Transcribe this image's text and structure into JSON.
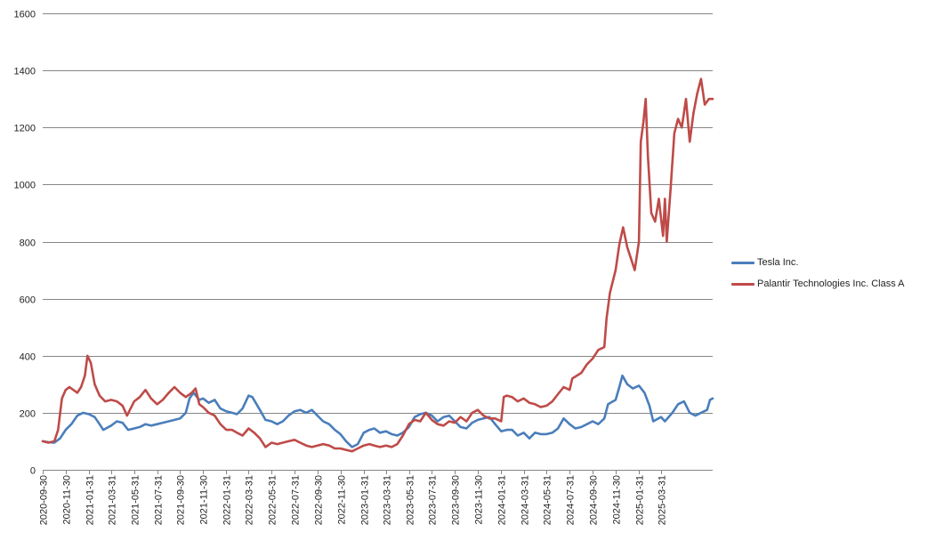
{
  "chart_data": {
    "type": "line",
    "title": "",
    "xlabel": "",
    "ylabel": "",
    "ylim": [
      0,
      1600
    ],
    "y_ticks": [
      0,
      200,
      400,
      600,
      800,
      1000,
      1200,
      1400,
      1600
    ],
    "x_ticks": [
      "2020-09-30",
      "2020-11-30",
      "2021-01-31",
      "2021-03-31",
      "2021-05-31",
      "2021-07-31",
      "2021-09-30",
      "2021-11-30",
      "2022-01-31",
      "2022-03-31",
      "2022-05-31",
      "2022-07-31",
      "2022-09-30",
      "2022-11-30",
      "2023-01-31",
      "2023-03-31",
      "2023-05-31",
      "2023-07-31",
      "2023-09-30",
      "2023-11-30",
      "2024-01-31",
      "2024-03-31",
      "2024-05-31",
      "2024-07-31",
      "2024-09-30",
      "2024-11-30",
      "2025-01-31",
      "2025-03-31"
    ],
    "x_range": [
      "2020-09-30",
      "2025-08-15"
    ],
    "grid": "horizontal",
    "legend_position": "right",
    "series": [
      {
        "name": "Tesla Inc.",
        "color": "#4a7ebb",
        "points": [
          [
            "2020-09-30",
            100
          ],
          [
            "2020-10-15",
            97
          ],
          [
            "2020-10-31",
            95
          ],
          [
            "2020-11-15",
            110
          ],
          [
            "2020-11-30",
            140
          ],
          [
            "2020-12-15",
            160
          ],
          [
            "2020-12-31",
            190
          ],
          [
            "2021-01-15",
            200
          ],
          [
            "2021-01-31",
            195
          ],
          [
            "2021-02-15",
            185
          ],
          [
            "2021-02-28",
            160
          ],
          [
            "2021-03-10",
            140
          ],
          [
            "2021-03-31",
            155
          ],
          [
            "2021-04-15",
            170
          ],
          [
            "2021-04-30",
            165
          ],
          [
            "2021-05-15",
            140
          ],
          [
            "2021-05-31",
            145
          ],
          [
            "2021-06-15",
            150
          ],
          [
            "2021-06-30",
            160
          ],
          [
            "2021-07-15",
            155
          ],
          [
            "2021-07-31",
            160
          ],
          [
            "2021-08-15",
            165
          ],
          [
            "2021-08-31",
            170
          ],
          [
            "2021-09-15",
            175
          ],
          [
            "2021-09-30",
            180
          ],
          [
            "2021-10-15",
            200
          ],
          [
            "2021-10-25",
            250
          ],
          [
            "2021-11-05",
            270
          ],
          [
            "2021-11-20",
            245
          ],
          [
            "2021-11-30",
            250
          ],
          [
            "2021-12-15",
            235
          ],
          [
            "2021-12-31",
            245
          ],
          [
            "2022-01-15",
            215
          ],
          [
            "2022-01-31",
            205
          ],
          [
            "2022-02-15",
            200
          ],
          [
            "2022-02-28",
            195
          ],
          [
            "2022-03-15",
            215
          ],
          [
            "2022-03-31",
            260
          ],
          [
            "2022-04-10",
            255
          ],
          [
            "2022-04-30",
            210
          ],
          [
            "2022-05-15",
            175
          ],
          [
            "2022-05-31",
            170
          ],
          [
            "2022-06-15",
            160
          ],
          [
            "2022-06-30",
            170
          ],
          [
            "2022-07-15",
            190
          ],
          [
            "2022-07-31",
            205
          ],
          [
            "2022-08-15",
            210
          ],
          [
            "2022-08-31",
            200
          ],
          [
            "2022-09-15",
            210
          ],
          [
            "2022-09-30",
            190
          ],
          [
            "2022-10-15",
            170
          ],
          [
            "2022-10-31",
            160
          ],
          [
            "2022-11-15",
            140
          ],
          [
            "2022-11-30",
            125
          ],
          [
            "2022-12-15",
            100
          ],
          [
            "2022-12-31",
            80
          ],
          [
            "2023-01-15",
            90
          ],
          [
            "2023-01-31",
            130
          ],
          [
            "2023-02-15",
            140
          ],
          [
            "2023-02-28",
            145
          ],
          [
            "2023-03-15",
            130
          ],
          [
            "2023-03-31",
            135
          ],
          [
            "2023-04-15",
            125
          ],
          [
            "2023-04-30",
            120
          ],
          [
            "2023-05-15",
            130
          ],
          [
            "2023-05-31",
            150
          ],
          [
            "2023-06-15",
            185
          ],
          [
            "2023-06-30",
            195
          ],
          [
            "2023-07-15",
            200
          ],
          [
            "2023-07-31",
            190
          ],
          [
            "2023-08-15",
            170
          ],
          [
            "2023-08-31",
            185
          ],
          [
            "2023-09-15",
            190
          ],
          [
            "2023-09-30",
            170
          ],
          [
            "2023-10-15",
            150
          ],
          [
            "2023-10-31",
            145
          ],
          [
            "2023-11-15",
            165
          ],
          [
            "2023-11-30",
            175
          ],
          [
            "2023-12-15",
            180
          ],
          [
            "2023-12-31",
            185
          ],
          [
            "2024-01-15",
            160
          ],
          [
            "2024-01-31",
            135
          ],
          [
            "2024-02-15",
            140
          ],
          [
            "2024-02-29",
            140
          ],
          [
            "2024-03-15",
            120
          ],
          [
            "2024-03-31",
            130
          ],
          [
            "2024-04-15",
            110
          ],
          [
            "2024-04-30",
            130
          ],
          [
            "2024-05-15",
            125
          ],
          [
            "2024-05-31",
            125
          ],
          [
            "2024-06-15",
            130
          ],
          [
            "2024-06-30",
            145
          ],
          [
            "2024-07-15",
            180
          ],
          [
            "2024-07-31",
            160
          ],
          [
            "2024-08-15",
            145
          ],
          [
            "2024-08-31",
            150
          ],
          [
            "2024-09-15",
            160
          ],
          [
            "2024-09-30",
            170
          ],
          [
            "2024-10-15",
            160
          ],
          [
            "2024-10-31",
            180
          ],
          [
            "2024-11-10",
            230
          ],
          [
            "2024-11-30",
            245
          ],
          [
            "2024-12-10",
            290
          ],
          [
            "2024-12-18",
            330
          ],
          [
            "2024-12-31",
            300
          ],
          [
            "2025-01-15",
            285
          ],
          [
            "2025-01-31",
            295
          ],
          [
            "2025-02-15",
            270
          ],
          [
            "2025-02-28",
            225
          ],
          [
            "2025-03-10",
            170
          ],
          [
            "2025-03-31",
            185
          ],
          [
            "2025-04-10",
            170
          ],
          [
            "2025-04-30",
            200
          ],
          [
            "2025-05-15",
            230
          ],
          [
            "2025-05-31",
            240
          ],
          [
            "2025-06-15",
            200
          ],
          [
            "2025-06-30",
            190
          ],
          [
            "2025-07-15",
            200
          ],
          [
            "2025-07-31",
            210
          ],
          [
            "2025-08-08",
            245
          ],
          [
            "2025-08-15",
            250
          ]
        ]
      },
      {
        "name": "Palantir Technologies Inc. Class A",
        "color": "#be4b48",
        "points": [
          [
            "2020-09-30",
            100
          ],
          [
            "2020-10-15",
            95
          ],
          [
            "2020-10-31",
            100
          ],
          [
            "2020-11-10",
            140
          ],
          [
            "2020-11-20",
            250
          ],
          [
            "2020-11-30",
            280
          ],
          [
            "2020-12-10",
            290
          ],
          [
            "2020-12-31",
            270
          ],
          [
            "2021-01-10",
            290
          ],
          [
            "2021-01-20",
            330
          ],
          [
            "2021-01-27",
            400
          ],
          [
            "2021-02-05",
            375
          ],
          [
            "2021-02-15",
            300
          ],
          [
            "2021-02-28",
            260
          ],
          [
            "2021-03-15",
            240
          ],
          [
            "2021-03-31",
            245
          ],
          [
            "2021-04-15",
            240
          ],
          [
            "2021-04-30",
            225
          ],
          [
            "2021-05-12",
            190
          ],
          [
            "2021-05-31",
            240
          ],
          [
            "2021-06-15",
            255
          ],
          [
            "2021-06-30",
            280
          ],
          [
            "2021-07-15",
            250
          ],
          [
            "2021-07-31",
            230
          ],
          [
            "2021-08-15",
            245
          ],
          [
            "2021-08-31",
            270
          ],
          [
            "2021-09-15",
            290
          ],
          [
            "2021-09-30",
            270
          ],
          [
            "2021-10-15",
            255
          ],
          [
            "2021-10-31",
            270
          ],
          [
            "2021-11-10",
            285
          ],
          [
            "2021-11-20",
            230
          ],
          [
            "2021-11-30",
            220
          ],
          [
            "2021-12-15",
            200
          ],
          [
            "2021-12-31",
            190
          ],
          [
            "2022-01-15",
            160
          ],
          [
            "2022-01-31",
            140
          ],
          [
            "2022-02-15",
            140
          ],
          [
            "2022-02-28",
            130
          ],
          [
            "2022-03-15",
            120
          ],
          [
            "2022-03-31",
            145
          ],
          [
            "2022-04-15",
            130
          ],
          [
            "2022-04-30",
            110
          ],
          [
            "2022-05-15",
            80
          ],
          [
            "2022-05-31",
            95
          ],
          [
            "2022-06-15",
            90
          ],
          [
            "2022-06-30",
            95
          ],
          [
            "2022-07-15",
            100
          ],
          [
            "2022-07-31",
            105
          ],
          [
            "2022-08-15",
            95
          ],
          [
            "2022-08-31",
            85
          ],
          [
            "2022-09-15",
            80
          ],
          [
            "2022-09-30",
            85
          ],
          [
            "2022-10-15",
            90
          ],
          [
            "2022-10-31",
            85
          ],
          [
            "2022-11-15",
            75
          ],
          [
            "2022-11-30",
            75
          ],
          [
            "2022-12-15",
            70
          ],
          [
            "2022-12-31",
            65
          ],
          [
            "2023-01-15",
            75
          ],
          [
            "2023-01-31",
            85
          ],
          [
            "2023-02-15",
            90
          ],
          [
            "2023-02-28",
            85
          ],
          [
            "2023-03-15",
            80
          ],
          [
            "2023-03-31",
            85
          ],
          [
            "2023-04-15",
            80
          ],
          [
            "2023-04-30",
            90
          ],
          [
            "2023-05-15",
            120
          ],
          [
            "2023-05-31",
            160
          ],
          [
            "2023-06-15",
            175
          ],
          [
            "2023-06-30",
            170
          ],
          [
            "2023-07-15",
            200
          ],
          [
            "2023-07-31",
            175
          ],
          [
            "2023-08-15",
            160
          ],
          [
            "2023-08-31",
            155
          ],
          [
            "2023-09-15",
            170
          ],
          [
            "2023-09-30",
            165
          ],
          [
            "2023-10-15",
            185
          ],
          [
            "2023-10-31",
            170
          ],
          [
            "2023-11-15",
            200
          ],
          [
            "2023-11-30",
            210
          ],
          [
            "2023-12-15",
            190
          ],
          [
            "2023-12-31",
            180
          ],
          [
            "2024-01-15",
            180
          ],
          [
            "2024-01-31",
            170
          ],
          [
            "2024-02-07",
            255
          ],
          [
            "2024-02-15",
            260
          ],
          [
            "2024-02-29",
            255
          ],
          [
            "2024-03-15",
            240
          ],
          [
            "2024-03-31",
            250
          ],
          [
            "2024-04-15",
            235
          ],
          [
            "2024-04-30",
            230
          ],
          [
            "2024-05-15",
            220
          ],
          [
            "2024-05-31",
            225
          ],
          [
            "2024-06-15",
            240
          ],
          [
            "2024-06-30",
            265
          ],
          [
            "2024-07-15",
            290
          ],
          [
            "2024-07-31",
            280
          ],
          [
            "2024-08-07",
            320
          ],
          [
            "2024-08-31",
            340
          ],
          [
            "2024-09-15",
            370
          ],
          [
            "2024-09-30",
            390
          ],
          [
            "2024-10-15",
            420
          ],
          [
            "2024-10-31",
            430
          ],
          [
            "2024-11-06",
            530
          ],
          [
            "2024-11-15",
            620
          ],
          [
            "2024-11-30",
            700
          ],
          [
            "2024-12-10",
            790
          ],
          [
            "2024-12-20",
            850
          ],
          [
            "2024-12-31",
            780
          ],
          [
            "2025-01-10",
            740
          ],
          [
            "2025-01-20",
            700
          ],
          [
            "2025-01-31",
            800
          ],
          [
            "2025-02-05",
            1150
          ],
          [
            "2025-02-12",
            1220
          ],
          [
            "2025-02-18",
            1300
          ],
          [
            "2025-02-24",
            1100
          ],
          [
            "2025-03-05",
            900
          ],
          [
            "2025-03-15",
            870
          ],
          [
            "2025-03-25",
            950
          ],
          [
            "2025-04-05",
            820
          ],
          [
            "2025-04-10",
            950
          ],
          [
            "2025-04-15",
            800
          ],
          [
            "2025-04-25",
            980
          ],
          [
            "2025-05-05",
            1180
          ],
          [
            "2025-05-15",
            1230
          ],
          [
            "2025-05-25",
            1200
          ],
          [
            "2025-06-05",
            1300
          ],
          [
            "2025-06-15",
            1150
          ],
          [
            "2025-06-25",
            1250
          ],
          [
            "2025-07-05",
            1320
          ],
          [
            "2025-07-15",
            1370
          ],
          [
            "2025-07-25",
            1280
          ],
          [
            "2025-08-05",
            1300
          ],
          [
            "2025-08-15",
            1300
          ]
        ]
      }
    ]
  }
}
